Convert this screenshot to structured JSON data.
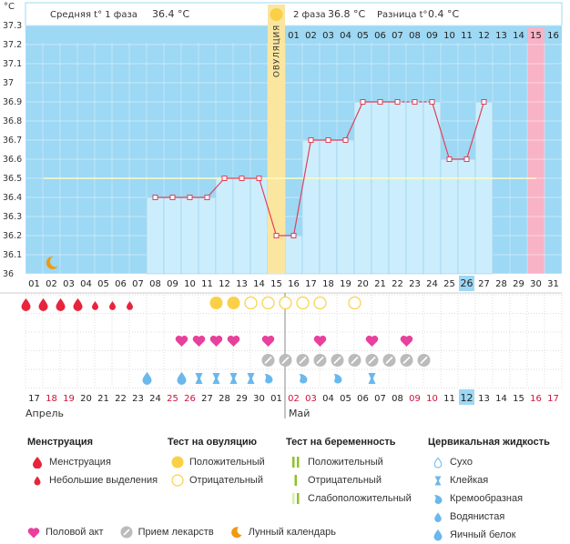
{
  "chart_data": {
    "type": "line",
    "unit_label": "°C",
    "y_ticks": [
      "37.3",
      "37.2",
      "37.1",
      "37",
      "36.9",
      "36.8",
      "36.7",
      "36.6",
      "36.5",
      "36.4",
      "36.3",
      "36.2",
      "36.1",
      "36"
    ],
    "ylim": [
      36,
      37.3
    ],
    "cover_line": 36.5,
    "phase1_label": "Средняя t° 1 фаза",
    "phase1_value": "36.4 °C",
    "phase2_label": "2 фаза",
    "phase2_value": "36.8 °C",
    "diff_label": "Разница t°",
    "diff_value": "0.4 °C",
    "ovulation_label": "ОВУЛЯЦИЯ",
    "ovulation_day_index": 14,
    "top_days": [
      "01",
      "02",
      "03",
      "04",
      "05",
      "06",
      "07",
      "08",
      "09",
      "10",
      "11",
      "12",
      "13",
      "14",
      "15",
      "16"
    ],
    "bottom_days": [
      "01",
      "02",
      "03",
      "04",
      "05",
      "06",
      "07",
      "08",
      "09",
      "10",
      "11",
      "12",
      "13",
      "14",
      "15",
      "16",
      "17",
      "18",
      "19",
      "20",
      "21",
      "22",
      "23",
      "24",
      "25",
      "26",
      "27",
      "28",
      "29",
      "30",
      "31"
    ],
    "highlight_cycle_day_index": 25,
    "menstruation_expected_index": 29,
    "temperatures": [
      null,
      null,
      null,
      null,
      null,
      null,
      null,
      36.4,
      36.4,
      36.4,
      36.4,
      36.5,
      36.5,
      36.5,
      36.2,
      36.2,
      36.7,
      36.7,
      36.7,
      36.9,
      36.9,
      36.9,
      36.9,
      36.9,
      36.6,
      36.6,
      36.9,
      null,
      null,
      null,
      null
    ],
    "dashed_from_index": 21,
    "dashed_to_index": 23,
    "calendar_dates": [
      "17",
      "18",
      "19",
      "20",
      "21",
      "22",
      "23",
      "24",
      "25",
      "26",
      "27",
      "28",
      "29",
      "30",
      "01",
      "02",
      "03",
      "04",
      "05",
      "06",
      "07",
      "08",
      "09",
      "10",
      "11",
      "12",
      "13",
      "14",
      "15",
      "16",
      "17"
    ],
    "weekend_indices": [
      1,
      2,
      8,
      9,
      15,
      16,
      22,
      23,
      29,
      30
    ],
    "today_index": 25,
    "month_labels": [
      {
        "index": 0,
        "name": "Апрель"
      },
      {
        "index": 14,
        "name": "Май"
      }
    ],
    "menstruation": [
      "heavy",
      "heavy",
      "heavy",
      "heavy",
      "light",
      "light",
      "light",
      null,
      null,
      null,
      null,
      null,
      null,
      null,
      null,
      null,
      null,
      null,
      null,
      null,
      null,
      null,
      null,
      null,
      null,
      null,
      null,
      null,
      null,
      null,
      null
    ],
    "ovulation_test": [
      null,
      null,
      null,
      null,
      null,
      null,
      null,
      null,
      null,
      null,
      null,
      "positive",
      "positive",
      "negative",
      "negative",
      "negative",
      "negative",
      "negative",
      null,
      "negative",
      null,
      null,
      null,
      null,
      null,
      null,
      null,
      null,
      null,
      null,
      null
    ],
    "intercourse_indices": [
      9,
      10,
      11,
      12,
      14,
      17,
      20,
      22
    ],
    "medication_indices": [
      14,
      15,
      16,
      17,
      18,
      19,
      20,
      21,
      22,
      23
    ],
    "cervical_fluid": [
      null,
      null,
      null,
      null,
      null,
      null,
      null,
      "eggwhite",
      null,
      "eggwhite",
      "sticky",
      "sticky",
      "sticky",
      "sticky",
      "creamy",
      null,
      "creamy",
      null,
      "creamy",
      null,
      "sticky",
      null,
      null,
      null,
      null,
      null,
      null,
      null,
      null,
      null,
      null
    ],
    "lunar_index": 1
  },
  "colors": {
    "grid_bg": "#9dd8f4",
    "bar": "#cceefc",
    "bar_edge": "#8cc8e8",
    "line": "#e0405a",
    "ovulation": "#fbe6a0",
    "expected_period": "#f8b3c6",
    "cover_line": "#fffcc0",
    "blood": "#e8243c",
    "heart": "#e8409c",
    "pill": "#bbbbbb",
    "ovu_pos": "#fad047",
    "moon": "#f09a10",
    "drop_blue": "#6ab8ec",
    "preg_green": "#8ec228",
    "preg_light": "#d8eca8"
  },
  "legend": {
    "menstruation_title": "Менструация",
    "menstruation_heavy": "Менструация",
    "menstruation_light": "Небольшие выделения",
    "ovulation_title": "Тест на овуляцию",
    "ovulation_pos": "Положительный",
    "ovulation_neg": "Отрицательный",
    "pregnancy_title": "Тест на беременность",
    "pregnancy_pos": "Положительный",
    "pregnancy_neg": "Отрицательный",
    "pregnancy_weak": "Слабоположительный",
    "cervical_title": "Цервикальная жидкость",
    "cervical_dry": "Сухо",
    "cervical_sticky": "Клейкая",
    "cervical_creamy": "Кремообразная",
    "cervical_watery": "Водянистая",
    "cervical_eggwhite": "Яичный белок",
    "intercourse": "Половой акт",
    "medication": "Прием лекарств",
    "lunar": "Лунный календарь"
  }
}
